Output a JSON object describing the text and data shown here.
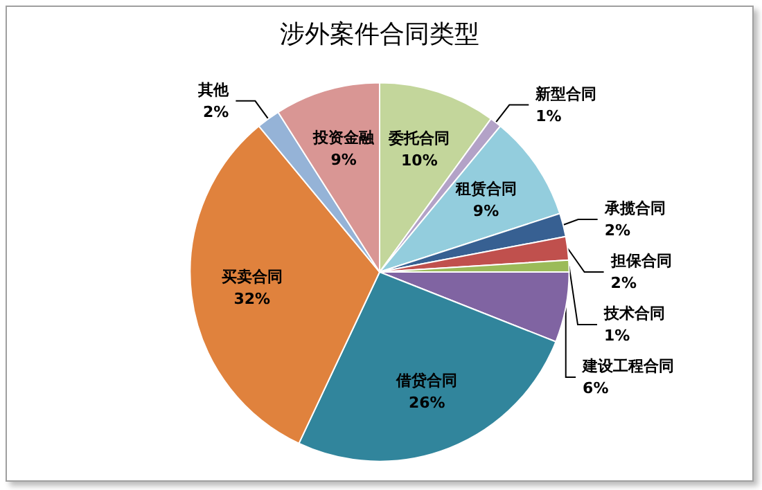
{
  "chart_data": {
    "type": "pie",
    "title": "涉外案件合同类型",
    "categories": [
      "委托合同",
      "新型合同",
      "租赁合同",
      "承揽合同",
      "担保合同",
      "技术合同",
      "建设工程合同",
      "借贷合同",
      "买卖合同",
      "其他",
      "投资金融"
    ],
    "values": [
      10,
      1,
      9,
      2,
      2,
      1,
      6,
      26,
      32,
      2,
      9
    ],
    "colors": [
      "#c3d69b",
      "#b3a2c7",
      "#93cddd",
      "#376092",
      "#c0504d",
      "#9bbb59",
      "#8064a2",
      "#31859c",
      "#e0823d",
      "#95b3d7",
      "#d99694"
    ],
    "value_labels": [
      "10%",
      "1%",
      "9%",
      "2%",
      "2%",
      "1%",
      "6%",
      "26%",
      "32%",
      "2%",
      "9%"
    ],
    "legend": false
  }
}
